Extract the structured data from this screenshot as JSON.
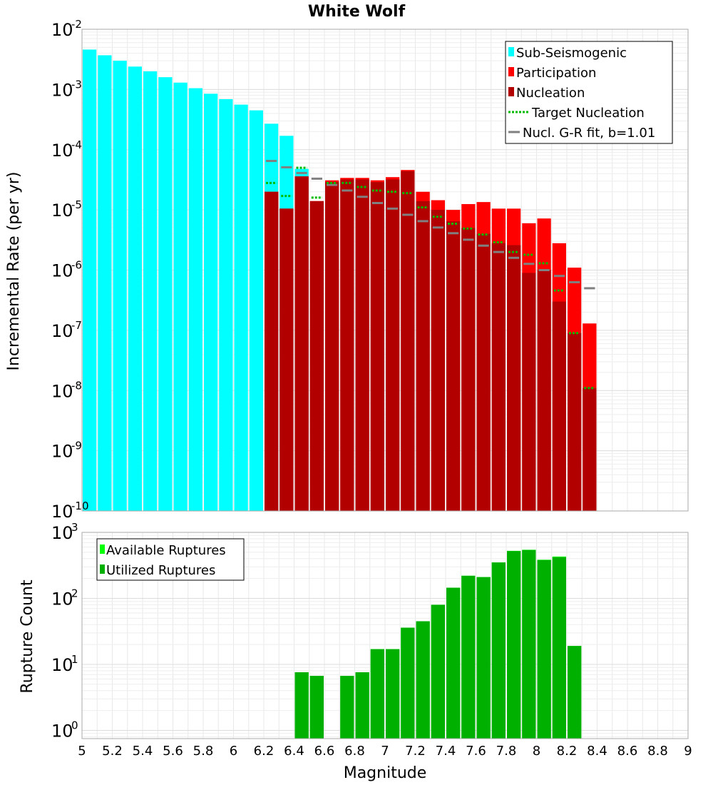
{
  "chart_data": [
    {
      "type": "bar",
      "title": "White Wolf",
      "xlabel": "",
      "ylabel": "Incremental Rate (per yr)",
      "xlim": [
        5,
        9
      ],
      "ylim": [
        1e-10,
        0.01
      ],
      "yscale": "log",
      "grid": true,
      "legend_position": "top-right",
      "y_ticks": [
        {
          "base": "10",
          "exp": "-2"
        },
        {
          "base": "10",
          "exp": "-3"
        },
        {
          "base": "10",
          "exp": "-4"
        },
        {
          "base": "10",
          "exp": "-5"
        },
        {
          "base": "10",
          "exp": "-6"
        },
        {
          "base": "10",
          "exp": "-7"
        },
        {
          "base": "10",
          "exp": "-8"
        },
        {
          "base": "10",
          "exp": "-9"
        },
        {
          "base": "10",
          "exp": "-10"
        }
      ],
      "series": [
        {
          "name": "Sub-Seismogenic",
          "color": "#00ffff",
          "style": "bar",
          "x": [
            5.05,
            5.15,
            5.25,
            5.35,
            5.45,
            5.55,
            5.65,
            5.75,
            5.85,
            5.95,
            6.05,
            6.15,
            6.25,
            6.35,
            6.45
          ],
          "values": [
            0.0046,
            0.0037,
            0.003,
            0.0024,
            0.002,
            0.0016,
            0.0013,
            0.00105,
            0.00085,
            0.00069,
            0.00056,
            0.00045,
            0.00027,
            0.00017,
            4.8e-05
          ]
        },
        {
          "name": "Participation",
          "color": "#ff0000",
          "style": "bar",
          "x": [
            6.25,
            6.35,
            6.45,
            6.55,
            6.65,
            6.75,
            6.85,
            6.95,
            7.05,
            7.15,
            7.25,
            7.35,
            7.45,
            7.55,
            7.65,
            7.75,
            7.85,
            7.95,
            8.05,
            8.15,
            8.25,
            8.35
          ],
          "values": [
            2e-05,
            1.05e-05,
            3.6e-05,
            1.4e-05,
            3.1e-05,
            3.4e-05,
            3.4e-05,
            3.1e-05,
            3.5e-05,
            4.6e-05,
            2e-05,
            1.45e-05,
            1e-05,
            1.25e-05,
            1.35e-05,
            1.05e-05,
            1.05e-05,
            6e-06,
            7.2e-06,
            2.8e-06,
            1.1e-06,
            1.3e-07
          ]
        },
        {
          "name": "Nucleation",
          "color": "#b20000",
          "style": "bar",
          "x": [
            6.25,
            6.35,
            6.45,
            6.55,
            6.65,
            6.75,
            6.85,
            6.95,
            7.05,
            7.15,
            7.25,
            7.35,
            7.45,
            7.55,
            7.65,
            7.75,
            7.85,
            7.95,
            8.05,
            8.15,
            8.25,
            8.35
          ],
          "values": [
            2e-05,
            1.05e-05,
            3.6e-05,
            1.4e-05,
            2.9e-05,
            3.2e-05,
            3.2e-05,
            2.9e-05,
            3.2e-05,
            4.4e-05,
            1.4e-05,
            1e-05,
            6.5e-06,
            5e-06,
            4e-06,
            2.8e-06,
            2.6e-06,
            9e-07,
            1e-06,
            3e-07,
            9e-08,
            1.1e-08
          ]
        },
        {
          "name": "Target Nucleation",
          "color": "#00bb00",
          "style": "dotted-tick",
          "x": [
            6.25,
            6.35,
            6.45,
            6.55,
            6.65,
            6.75,
            6.85,
            6.95,
            7.05,
            7.15,
            7.25,
            7.35,
            7.45,
            7.55,
            7.65,
            7.75,
            7.85,
            7.95,
            8.05,
            8.15,
            8.25,
            8.35
          ],
          "values": [
            2.8e-05,
            1.7e-05,
            5e-05,
            1.6e-05,
            2.8e-05,
            2.8e-05,
            2.4e-05,
            2.1e-05,
            2e-05,
            1.9e-05,
            1.1e-05,
            7.7e-06,
            5.9e-06,
            4.9e-06,
            3.9e-06,
            2.9e-06,
            2e-06,
            1.8e-06,
            1.3e-06,
            4.6e-07,
            9e-08,
            1.1e-08
          ]
        },
        {
          "name": "Nucl. G-R fit, b=1.01",
          "color": "#808080",
          "style": "solid-tick",
          "x": [
            6.25,
            6.35,
            6.45,
            6.55,
            6.65,
            6.75,
            6.85,
            6.95,
            7.05,
            7.15,
            7.25,
            7.35,
            7.45,
            7.55,
            7.65,
            7.75,
            7.85,
            7.95,
            8.05,
            8.15,
            8.25,
            8.35
          ],
          "values": [
            6.5e-05,
            5.1e-05,
            4.1e-05,
            3.3e-05,
            2.6e-05,
            2.1e-05,
            1.65e-05,
            1.3e-05,
            1.05e-05,
            8.3e-06,
            6.5e-06,
            5.1e-06,
            4.1e-06,
            3.2e-06,
            2.55e-06,
            2e-06,
            1.6e-06,
            1.27e-06,
            1e-06,
            8e-07,
            6.3e-07,
            5e-07
          ]
        }
      ]
    },
    {
      "type": "bar",
      "title": "",
      "xlabel": "Magnitude",
      "ylabel": "Rupture Count",
      "xlim": [
        5,
        9
      ],
      "ylim": [
        0.75,
        1000
      ],
      "yscale": "log",
      "grid": true,
      "legend_position": "top-left",
      "x_ticks": [
        "5",
        "5.2",
        "5.4",
        "5.6",
        "5.8",
        "6",
        "6.2",
        "6.4",
        "6.6",
        "6.8",
        "7",
        "7.2",
        "7.4",
        "7.6",
        "7.8",
        "8",
        "8.2",
        "8.4",
        "8.6",
        "8.8",
        "9"
      ],
      "y_ticks": [
        {
          "base": "10",
          "exp": "3"
        },
        {
          "base": "10",
          "exp": "2"
        },
        {
          "base": "10",
          "exp": "1"
        },
        {
          "base": "10",
          "exp": "0"
        }
      ],
      "series": [
        {
          "name": "Available Ruptures",
          "color": "#00ff00",
          "style": "bar",
          "x": [
            6.45,
            6.55,
            6.75,
            6.85,
            6.95,
            7.05,
            7.15,
            7.25,
            7.35,
            7.45,
            7.55,
            7.65,
            7.75,
            7.85,
            7.95,
            8.05,
            8.15,
            8.25
          ],
          "values": [
            7.6,
            6.7,
            6.7,
            7.6,
            17,
            17,
            36,
            45,
            80,
            145,
            220,
            210,
            350,
            525,
            545,
            385,
            430,
            19
          ]
        },
        {
          "name": "Utilized Ruptures",
          "color": "#00b000",
          "style": "bar",
          "x": [
            6.45,
            6.55,
            6.75,
            6.85,
            6.95,
            7.05,
            7.15,
            7.25,
            7.35,
            7.45,
            7.55,
            7.65,
            7.75,
            7.85,
            7.95,
            8.05,
            8.15,
            8.25
          ],
          "values": [
            7.6,
            6.7,
            6.7,
            7.6,
            17,
            17,
            36,
            45,
            80,
            145,
            220,
            210,
            350,
            520,
            540,
            380,
            420,
            19
          ]
        }
      ]
    }
  ]
}
